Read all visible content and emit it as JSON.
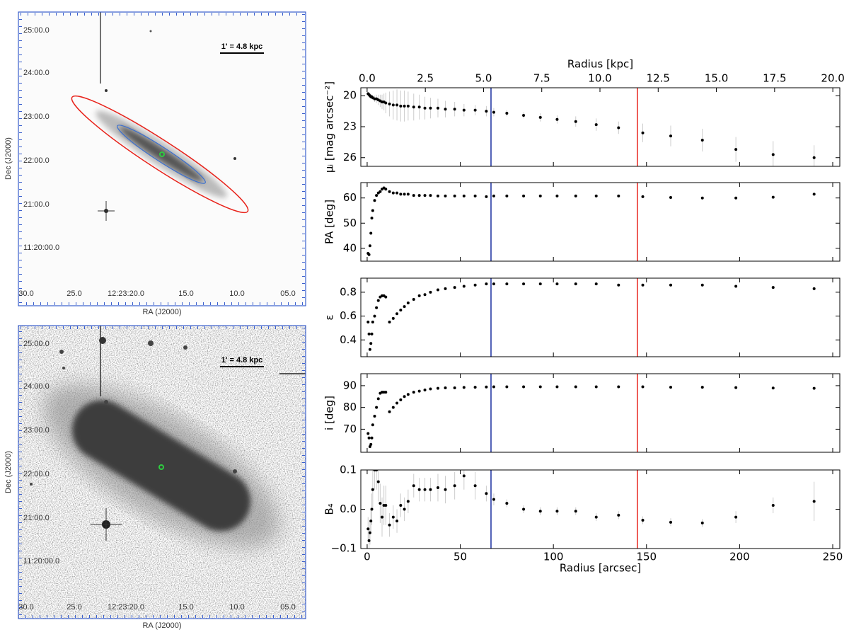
{
  "images": [
    {
      "scale_label": "1' = 4.8 kpc",
      "ra_ticks": [
        "30.0",
        "25.0",
        "12:23:20.0",
        "15.0",
        "10.0",
        "05.0"
      ],
      "dec_ticks": [
        "25:00.0",
        "24:00.0",
        "23:00.0",
        "22:00.0",
        "21:00.0",
        "11:20:00.0"
      ],
      "xlabel": "RA (J2000)",
      "ylabel": "Dec (J2000)"
    },
    {
      "scale_label": "1' = 4.8 kpc",
      "ra_ticks": [
        "30.0",
        "25.0",
        "12:23:20.0",
        "15.0",
        "10.0",
        "05.0"
      ],
      "dec_ticks": [
        "25:00.0",
        "24:00.0",
        "23:00.0",
        "22:00.0",
        "21:00.0",
        "11:20:00.0"
      ],
      "xlabel": "RA (J2000)",
      "ylabel": "Dec (J2000)"
    }
  ],
  "chart_data": [
    {
      "type": "scatter",
      "ylabel": "μᵢ [mag arcsec⁻²]",
      "x2label": "Radius [kpc]",
      "x2lim": [
        -0.27,
        20.3
      ],
      "x2ticks": [
        {
          "value": 0,
          "label": "0.0"
        },
        {
          "value": 2.5,
          "label": "2.5"
        },
        {
          "value": 5,
          "label": "5.0"
        },
        {
          "value": 7.5,
          "label": "7.5"
        },
        {
          "value": 10,
          "label": "10.0"
        },
        {
          "value": 12.5,
          "label": "12.5"
        },
        {
          "value": 15,
          "label": "15.0"
        },
        {
          "value": 17.5,
          "label": "17.5"
        },
        {
          "value": 20,
          "label": "20.0"
        }
      ],
      "xlim": [
        -3.4,
        253.8
      ],
      "xticks": [
        0,
        50,
        100,
        150,
        200,
        250
      ],
      "ylim": [
        26.84,
        19.23
      ],
      "yticks": [
        20,
        23,
        26
      ],
      "x": [
        0.5,
        1,
        1.5,
        2,
        2.5,
        3,
        4,
        5,
        6,
        7,
        8,
        9,
        10,
        12,
        14,
        16,
        18,
        20,
        22,
        25,
        28,
        31,
        34,
        38,
        42,
        47,
        52,
        58,
        64,
        68,
        75,
        84,
        93,
        102,
        112,
        123,
        135,
        148,
        163,
        180,
        198,
        218,
        240
      ],
      "series": [
        {
          "color": "#000000",
          "error_color": "#cccccc",
          "values": [
            19.8,
            19.9,
            20.0,
            20.1,
            20.1,
            20.2,
            20.3,
            20.3,
            20.4,
            20.5,
            20.6,
            20.6,
            20.7,
            20.8,
            20.9,
            20.9,
            21.0,
            21.0,
            21.0,
            21.1,
            21.1,
            21.2,
            21.2,
            21.2,
            21.3,
            21.3,
            21.4,
            21.4,
            21.5,
            21.6,
            21.7,
            21.9,
            22.1,
            22.3,
            22.5,
            22.8,
            23.1,
            23.6,
            23.9,
            24.3,
            25.2,
            25.7,
            26.0
          ],
          "errors": [
            0.1,
            0.1,
            0.15,
            0.15,
            0.2,
            0.2,
            0.3,
            0.4,
            0.5,
            0.6,
            0.7,
            0.8,
            1.0,
            1.2,
            1.4,
            1.5,
            1.5,
            1.5,
            1.4,
            1.3,
            1.2,
            1.1,
            1.0,
            0.9,
            0.8,
            0.7,
            0.6,
            0.5,
            0.5,
            0.4,
            0.3,
            0.3,
            0.4,
            0.4,
            0.5,
            0.6,
            0.6,
            0.9,
            1.0,
            1.1,
            1.2,
            1.3,
            1.2
          ]
        }
      ],
      "vlines": [
        {
          "x": 66.5,
          "color": "#1a2fa0"
        },
        {
          "x": 145.1,
          "color": "#e8231b"
        }
      ]
    },
    {
      "type": "scatter",
      "ylabel": "PA [deg]",
      "xlim": [
        -3.4,
        253.8
      ],
      "xticks": [
        0,
        50,
        100,
        150,
        200,
        250
      ],
      "ylim": [
        34.9,
        66.1
      ],
      "yticks": [
        40,
        50,
        60
      ],
      "x": [
        0.5,
        1,
        1.5,
        2,
        2.5,
        3,
        4,
        5,
        6,
        7,
        8,
        9,
        10,
        12,
        14,
        16,
        18,
        20,
        22,
        25,
        28,
        31,
        34,
        38,
        42,
        47,
        52,
        58,
        64,
        68,
        75,
        84,
        93,
        102,
        112,
        123,
        135,
        148,
        163,
        180,
        198,
        218,
        240
      ],
      "series": [
        {
          "color": "#000000",
          "values": [
            38,
            37.5,
            41,
            46,
            52,
            55,
            59,
            61,
            62,
            62.5,
            63.5,
            64,
            63.5,
            62.5,
            62,
            62,
            61.5,
            61.5,
            61.5,
            61,
            61,
            61,
            61,
            60.8,
            60.8,
            60.8,
            60.8,
            60.8,
            60.5,
            60.8,
            60.8,
            60.8,
            60.8,
            60.8,
            60.8,
            60.8,
            60.8,
            60.5,
            60.2,
            60,
            60,
            60.3,
            61.5
          ]
        }
      ],
      "vlines": [
        {
          "x": 66.5,
          "color": "#1a2fa0"
        },
        {
          "x": 145.1,
          "color": "#e8231b"
        }
      ]
    },
    {
      "type": "scatter",
      "ylabel": "ε",
      "xlim": [
        -3.4,
        253.8
      ],
      "xticks": [
        0,
        50,
        100,
        150,
        200,
        250
      ],
      "ylim": [
        0.259,
        0.918
      ],
      "yticks": [
        0.4,
        0.6,
        0.8
      ],
      "x": [
        0.5,
        1,
        1.5,
        2,
        2.5,
        3,
        4,
        5,
        6,
        7,
        8,
        9,
        10,
        12,
        14,
        16,
        18,
        20,
        22,
        25,
        28,
        31,
        34,
        38,
        42,
        47,
        52,
        58,
        64,
        68,
        75,
        84,
        93,
        102,
        112,
        123,
        135,
        148,
        163,
        180,
        198,
        218,
        240
      ],
      "series": [
        {
          "color": "#000000",
          "values": [
            0.55,
            0.45,
            0.32,
            0.37,
            0.45,
            0.55,
            0.6,
            0.67,
            0.73,
            0.76,
            0.77,
            0.77,
            0.76,
            0.55,
            0.58,
            0.62,
            0.65,
            0.68,
            0.71,
            0.74,
            0.77,
            0.78,
            0.8,
            0.82,
            0.83,
            0.84,
            0.85,
            0.86,
            0.87,
            0.87,
            0.87,
            0.87,
            0.87,
            0.87,
            0.87,
            0.87,
            0.86,
            0.86,
            0.86,
            0.86,
            0.85,
            0.84,
            0.83
          ]
        }
      ],
      "vlines": [
        {
          "x": 66.5,
          "color": "#1a2fa0"
        },
        {
          "x": 145.1,
          "color": "#e8231b"
        }
      ]
    },
    {
      "type": "scatter",
      "ylabel": "i [deg]",
      "xlim": [
        -3.4,
        253.8
      ],
      "xticks": [
        0,
        50,
        100,
        150,
        200,
        250
      ],
      "ylim": [
        59.4,
        95.5
      ],
      "yticks": [
        70,
        80,
        90
      ],
      "x": [
        0.5,
        1,
        1.5,
        2,
        2.5,
        3,
        4,
        5,
        6,
        7,
        8,
        9,
        10,
        12,
        14,
        16,
        18,
        20,
        22,
        25,
        28,
        31,
        34,
        38,
        42,
        47,
        52,
        58,
        64,
        68,
        75,
        84,
        93,
        102,
        112,
        123,
        135,
        148,
        163,
        180,
        198,
        218,
        240
      ],
      "series": [
        {
          "color": "#000000",
          "values": [
            68,
            66,
            62,
            63,
            66,
            72,
            76,
            80,
            84,
            86.5,
            87,
            87,
            87,
            78,
            80,
            82,
            83.5,
            85,
            86,
            87,
            87.5,
            88,
            88.5,
            88.8,
            89,
            89,
            89.2,
            89.3,
            89.4,
            89.5,
            89.5,
            89.5,
            89.5,
            89.5,
            89.5,
            89.5,
            89.5,
            89.5,
            89.3,
            89.3,
            89.1,
            88.9,
            88.8
          ]
        }
      ],
      "vlines": [
        {
          "x": 66.5,
          "color": "#1a2fa0"
        },
        {
          "x": 145.1,
          "color": "#e8231b"
        }
      ]
    },
    {
      "type": "scatter",
      "ylabel": "B₄",
      "xlabel": "Radius [arcsec]",
      "xlim": [
        -3.4,
        253.8
      ],
      "xticks": [
        0,
        50,
        100,
        150,
        200,
        250
      ],
      "ylim": [
        -0.1,
        0.1
      ],
      "yticks": [
        {
          "value": -0.1,
          "label": "−0.1"
        },
        {
          "value": 0,
          "label": "0.0"
        },
        {
          "value": 0.1,
          "label": "0.1"
        }
      ],
      "x": [
        0.5,
        1,
        1.5,
        2,
        2.5,
        3,
        4,
        5,
        6,
        7,
        8,
        9,
        10,
        12,
        14,
        16,
        18,
        20,
        22,
        25,
        28,
        31,
        34,
        38,
        42,
        47,
        52,
        58,
        64,
        68,
        75,
        84,
        93,
        102,
        112,
        123,
        135,
        148,
        163,
        180,
        198,
        218,
        240
      ],
      "series": [
        {
          "color": "#000000",
          "error_color": "#cccccc",
          "values": [
            -0.05,
            -0.08,
            -0.06,
            -0.03,
            0,
            0.05,
            0.1,
            0.1,
            0.07,
            0.015,
            -0.02,
            0.01,
            0.01,
            -0.04,
            -0.02,
            -0.03,
            0.01,
            0,
            0.02,
            0.06,
            0.05,
            0.05,
            0.05,
            0.055,
            0.05,
            0.06,
            0.085,
            0.06,
            0.04,
            0.025,
            0.015,
            0,
            -0.005,
            -0.005,
            -0.005,
            -0.02,
            -0.015,
            -0.028,
            -0.033,
            -0.035,
            -0.02,
            0.01,
            0.02
          ],
          "errors": [
            0.03,
            0.03,
            0.03,
            0.03,
            0.04,
            0.05,
            0.05,
            0.05,
            0.05,
            0.05,
            0.05,
            0.05,
            0.05,
            0.03,
            0.03,
            0.03,
            0.03,
            0.03,
            0.03,
            0.03,
            0.03,
            0.03,
            0.03,
            0.035,
            0.035,
            0.035,
            0.035,
            0.035,
            0.02,
            0.015,
            0.01,
            0.01,
            0.01,
            0.01,
            0.01,
            0.01,
            0.01,
            0.01,
            0.01,
            0.01,
            0.015,
            0.02,
            0.05
          ]
        }
      ],
      "vlines": [
        {
          "x": 66.5,
          "color": "#1a2fa0"
        },
        {
          "x": 145.1,
          "color": "#e8231b"
        }
      ]
    }
  ]
}
